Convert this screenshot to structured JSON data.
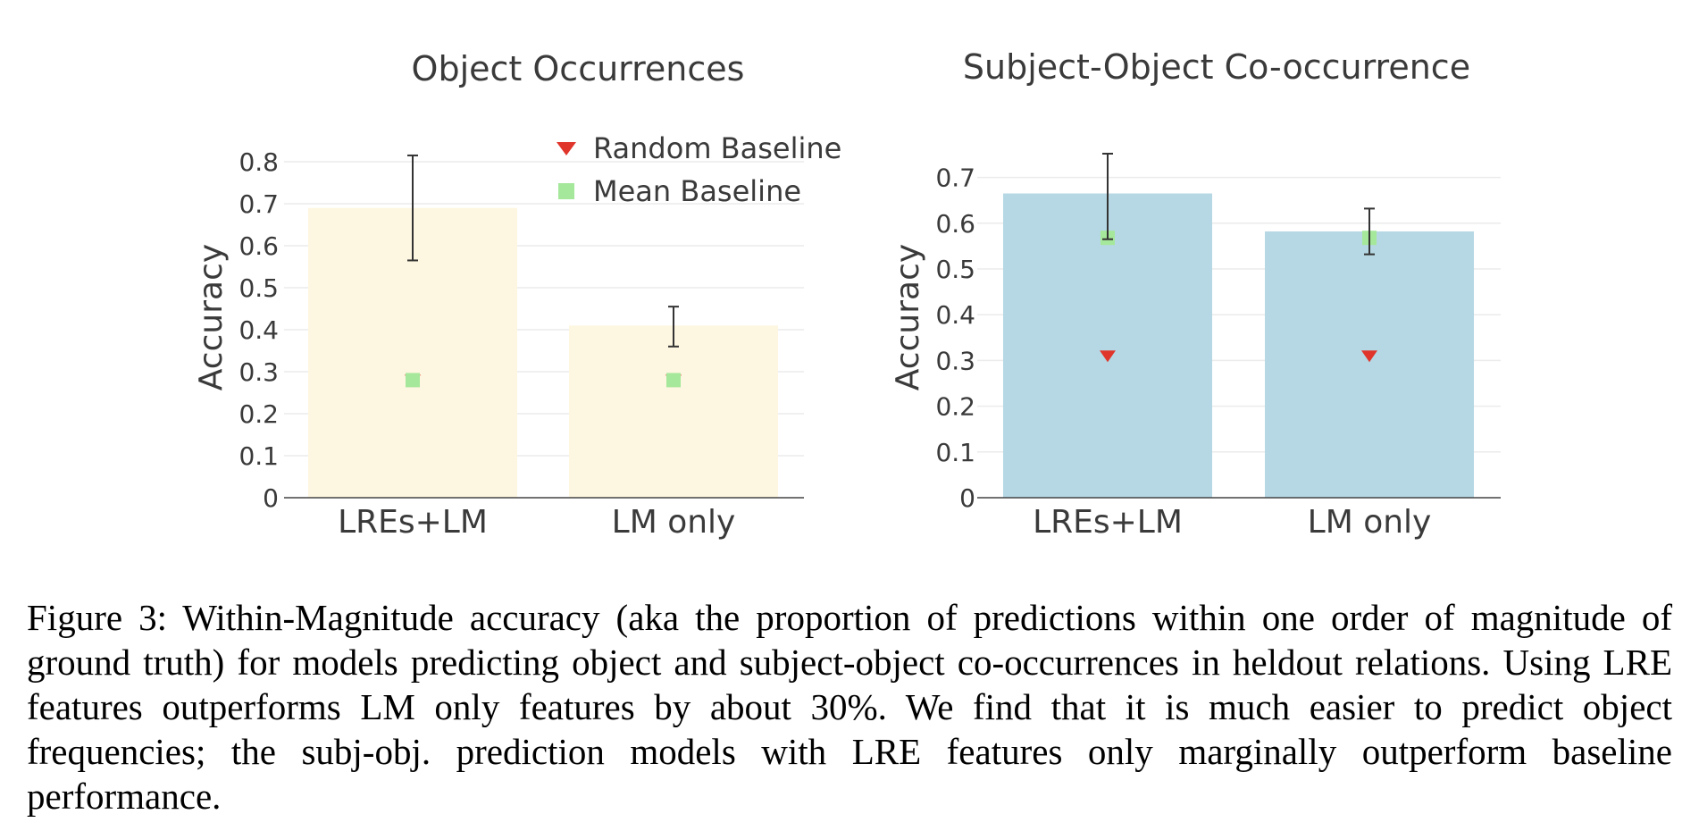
{
  "chart_data": [
    {
      "type": "bar",
      "title": "Object Occurrences",
      "xlabel": "",
      "ylabel": "Accuracy",
      "categories": [
        "LREs+LM",
        "LM only"
      ],
      "values": [
        0.69,
        0.41
      ],
      "error_bars": [
        [
          0.565,
          0.815
        ],
        [
          0.36,
          0.455
        ]
      ],
      "bar_color": "#fdf6e0",
      "ylim": [
        0,
        0.83
      ],
      "yticks": [
        0,
        0.1,
        0.2,
        0.3,
        0.4,
        0.5,
        0.6,
        0.7,
        0.8
      ],
      "ytick_labels": [
        "0",
        "0.1",
        "0.2",
        "0.3",
        "0.4",
        "0.5",
        "0.6",
        "0.7",
        "0.8"
      ],
      "grid": true,
      "legend_position": "top-right",
      "baselines": [
        {
          "name": "Random Baseline",
          "marker": "triangle-down",
          "color": "#e0352b",
          "values": [
            0.28,
            0.28
          ]
        },
        {
          "name": "Mean Baseline",
          "marker": "square",
          "color": "#a6e89b",
          "values": [
            0.28,
            0.28
          ]
        }
      ]
    },
    {
      "type": "bar",
      "title": "Subject-Object Co-occurrence",
      "xlabel": "",
      "ylabel": "Accuracy",
      "categories": [
        "LREs+LM",
        "LM only"
      ],
      "values": [
        0.665,
        0.582
      ],
      "error_bars": [
        [
          0.565,
          0.752
        ],
        [
          0.532,
          0.632
        ]
      ],
      "bar_color": "#b5d8e4",
      "ylim": [
        0,
        0.75
      ],
      "yticks": [
        0,
        0.1,
        0.2,
        0.3,
        0.4,
        0.5,
        0.6,
        0.7
      ],
      "ytick_labels": [
        "0",
        "0.1",
        "0.2",
        "0.3",
        "0.4",
        "0.5",
        "0.6",
        "0.7"
      ],
      "grid": true,
      "baselines": [
        {
          "name": "Random Baseline",
          "marker": "triangle-down",
          "color": "#e0352b",
          "values": [
            0.31,
            0.31
          ]
        },
        {
          "name": "Mean Baseline",
          "marker": "square",
          "color": "#a6e89b",
          "values": [
            0.568,
            0.568
          ]
        }
      ]
    }
  ],
  "caption": "Figure 3: Within-Magnitude accuracy (aka the proportion of predictions within one order of magnitude of ground truth) for models predicting object and subject-object co-occurrences in heldout relations. Using LRE features outperforms LM only features by about 30%. We find that it is much easier to predict object frequencies; the subj-obj. prediction models with LRE features only marginally outperform baseline performance."
}
